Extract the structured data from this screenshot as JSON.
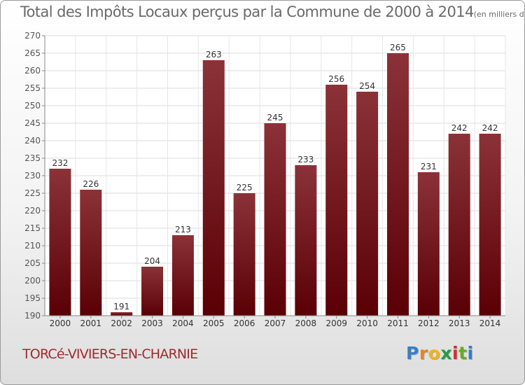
{
  "header": {
    "title": "Total des Impôts Locaux perçus par la Commune de 2000 à 2014",
    "unit": "(en milliers d'€)"
  },
  "footer": {
    "commune": "TORCé-VIVIERS-EN-CHARNIE",
    "logo_letters": [
      "P",
      "r",
      "o",
      "x",
      "i",
      "t",
      "i"
    ],
    "logo_colors": [
      "#3a7fc4",
      "#e8841f",
      "#f2b21b",
      "#2a9a46",
      "#d03030",
      "#6aaa2a",
      "#2f7fc9"
    ]
  },
  "chart_data": {
    "type": "bar",
    "categories": [
      "2000",
      "2001",
      "2002",
      "2003",
      "2004",
      "2005",
      "2006",
      "2007",
      "2008",
      "2009",
      "2010",
      "2011",
      "2012",
      "2013",
      "2014"
    ],
    "values": [
      232,
      226,
      191,
      204,
      213,
      263,
      225,
      245,
      233,
      256,
      254,
      265,
      231,
      242,
      242
    ],
    "ylim": [
      190,
      270
    ],
    "yticks": [
      190,
      195,
      200,
      205,
      210,
      215,
      220,
      225,
      230,
      235,
      240,
      245,
      250,
      255,
      260,
      265,
      270
    ],
    "grid": true,
    "bar_color_top": "#8b3238",
    "bar_color_bottom": "#5a0005"
  }
}
